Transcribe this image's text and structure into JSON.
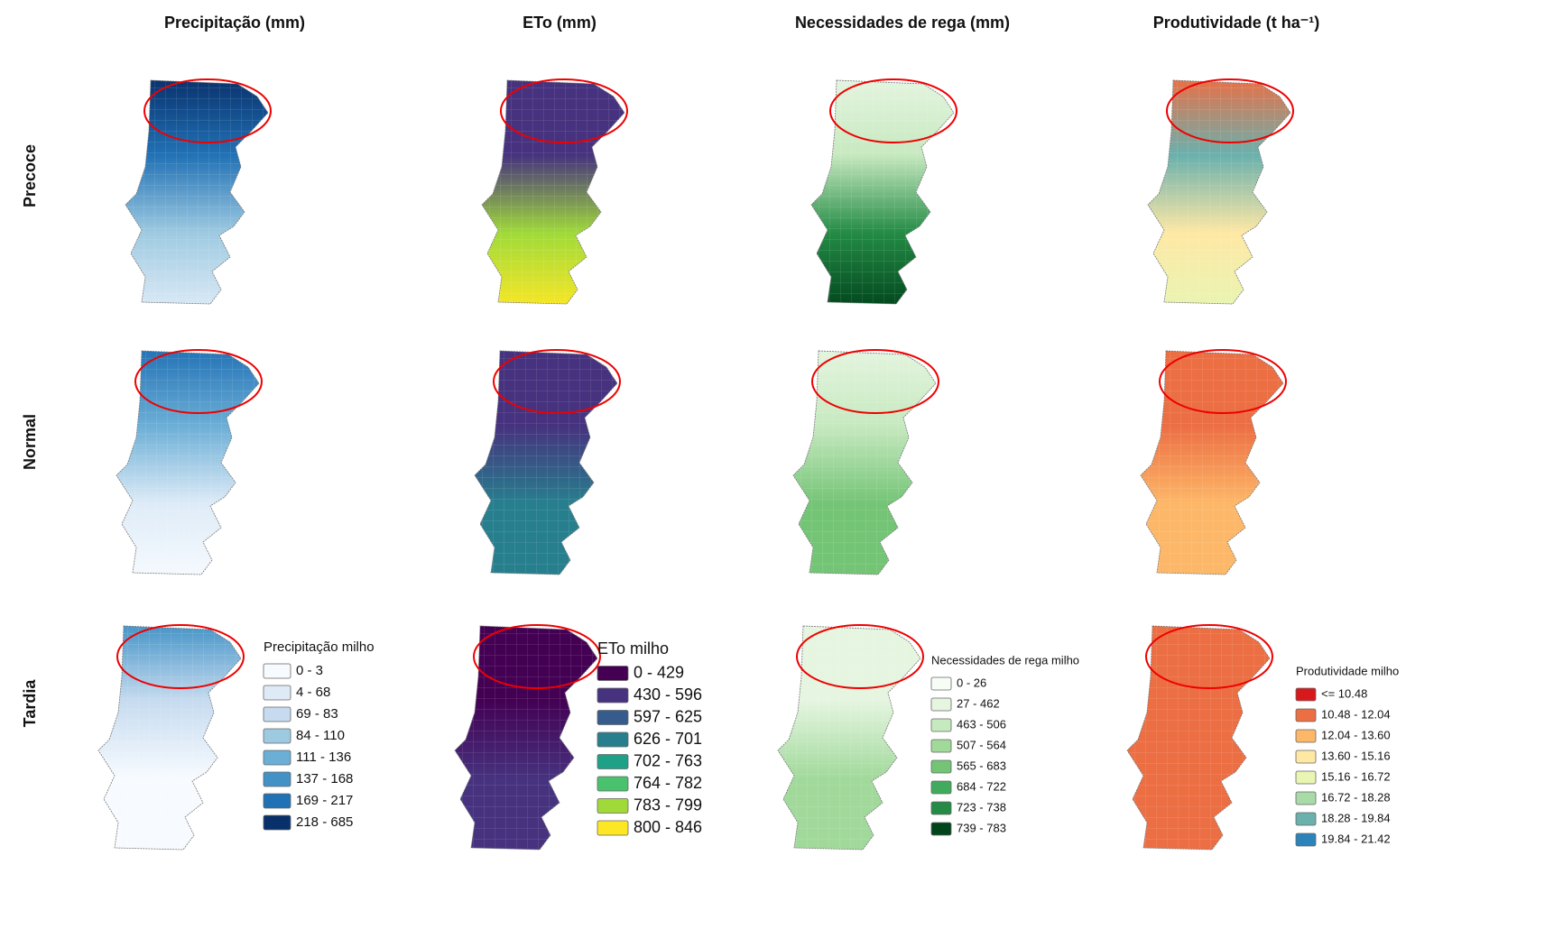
{
  "columns": [
    "Precipitação (mm)",
    "ETo (mm)",
    "Necessidades de rega (mm)",
    "Produtividade (t ha⁻¹)"
  ],
  "rows": [
    "Precoce",
    "Normal",
    "Tardia"
  ],
  "legends": [
    {
      "title": "Precipitação milho",
      "items": [
        {
          "label": "0 - 3",
          "color": "#f7fbff"
        },
        {
          "label": "4 - 68",
          "color": "#deebf7"
        },
        {
          "label": "69 - 83",
          "color": "#c6dbef"
        },
        {
          "label": "84 - 110",
          "color": "#9ecae1"
        },
        {
          "label": "111 - 136",
          "color": "#6baed6"
        },
        {
          "label": "137 - 168",
          "color": "#4292c6"
        },
        {
          "label": "169 - 217",
          "color": "#2171b5"
        },
        {
          "label": "218 - 685",
          "color": "#08306b"
        }
      ]
    },
    {
      "title": "ETo milho",
      "items": [
        {
          "label": "0 - 429",
          "color": "#440154"
        },
        {
          "label": "430 - 596",
          "color": "#46327e"
        },
        {
          "label": "597 - 625",
          "color": "#365c8d"
        },
        {
          "label": "626 - 701",
          "color": "#277f8e"
        },
        {
          "label": "702 - 763",
          "color": "#1fa187"
        },
        {
          "label": "764 - 782",
          "color": "#4ac16d"
        },
        {
          "label": "783 - 799",
          "color": "#a0da39"
        },
        {
          "label": "800 - 846",
          "color": "#fde725"
        }
      ]
    },
    {
      "title": "Necessidades de rega milho",
      "items": [
        {
          "label": "0 - 26",
          "color": "#f7fcf5"
        },
        {
          "label": "27 - 462",
          "color": "#e5f5e0"
        },
        {
          "label": "463 - 506",
          "color": "#c7e9c0"
        },
        {
          "label": "507 - 564",
          "color": "#a1d99b"
        },
        {
          "label": "565 - 683",
          "color": "#74c476"
        },
        {
          "label": "684 - 722",
          "color": "#41ab5d"
        },
        {
          "label": "723 - 738",
          "color": "#238b45"
        },
        {
          "label": "739 - 783",
          "color": "#00441b"
        }
      ]
    },
    {
      "title": "Produtividade milho",
      "items": [
        {
          "label": "<= 10.48",
          "color": "#d7191c"
        },
        {
          "label": "10.48 - 12.04",
          "color": "#ec6e43"
        },
        {
          "label": "12.04 - 13.60",
          "color": "#fdb768"
        },
        {
          "label": "13.60 - 15.16",
          "color": "#fee8a4"
        },
        {
          "label": "15.16 - 16.72",
          "color": "#e8f5b3"
        },
        {
          "label": "16.72 - 18.28",
          "color": "#a9dba8"
        },
        {
          "label": "18.28 - 19.84",
          "color": "#6ab0ad"
        },
        {
          "label": "19.84 - 21.42",
          "color": "#2b83ba"
        }
      ]
    }
  ]
}
